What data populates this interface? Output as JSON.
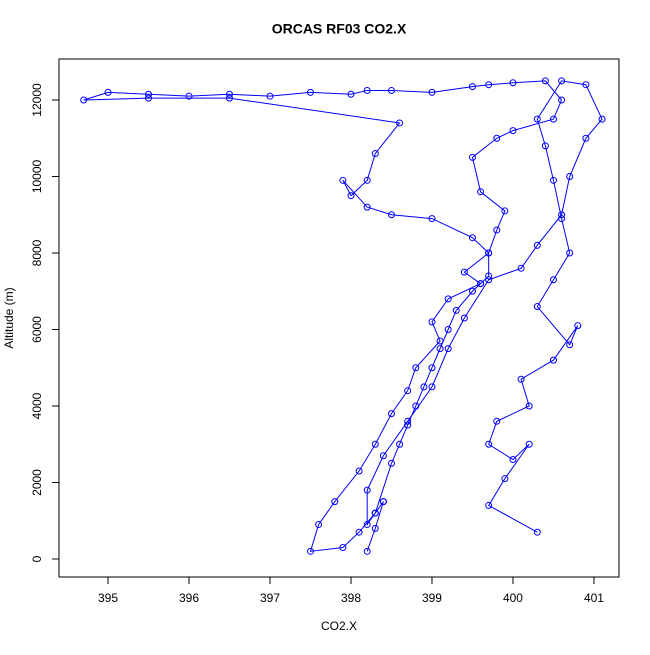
{
  "chart_data": {
    "type": "line",
    "title": "ORCAS RF03 CO2.X",
    "x_label": "CO2.X",
    "y_label": "Altitude (m)",
    "color": "#0000ff",
    "markers": true,
    "x": [
      398.2,
      398.3,
      398.4,
      398.3,
      398.5,
      398.6,
      398.7,
      398.8,
      398.9,
      399.0,
      399.1,
      399.2,
      399.3,
      399.5,
      399.6,
      399.7,
      399.7,
      399.8,
      399.9,
      399.6,
      399.5,
      399.8,
      400.0,
      400.5,
      400.6,
      400.4,
      400.0,
      399.7,
      399.5,
      399.0,
      398.5,
      398.2,
      398.0,
      397.5,
      397.0,
      396.5,
      396.0,
      395.5,
      395.0,
      394.7,
      395.5,
      396.5,
      398.6,
      398.3,
      398.2,
      398.0,
      397.9,
      398.2,
      398.5,
      399.0,
      399.5,
      399.7,
      399.4,
      399.6,
      399.2,
      399.0,
      399.1,
      398.8,
      398.7,
      398.5,
      398.3,
      398.1,
      397.8,
      397.6,
      397.5,
      397.9,
      398.1,
      398.3,
      398.4,
      398.2,
      398.2,
      398.4,
      398.7,
      399.0,
      399.2,
      399.4,
      399.7,
      400.1,
      400.3,
      400.6,
      400.7,
      400.9,
      401.1,
      400.9,
      400.6,
      400.3,
      400.4,
      400.5,
      400.6,
      400.7,
      400.5,
      400.3,
      400.7,
      400.8,
      400.5,
      400.1,
      400.2,
      399.8,
      399.7,
      400.0,
      400.2,
      399.9,
      399.7,
      400.3
    ],
    "values": [
      200,
      800,
      1500,
      1200,
      2500,
      3000,
      3500,
      4000,
      4500,
      5000,
      5500,
      6000,
      6500,
      7000,
      7200,
      7400,
      8000,
      8600,
      9100,
      9600,
      10500,
      11000,
      11200,
      11500,
      12000,
      12500,
      12450,
      12400,
      12350,
      12200,
      12250,
      12250,
      12150,
      12200,
      12100,
      12150,
      12100,
      12150,
      12200,
      12000,
      12050,
      12050,
      11400,
      10600,
      9900,
      9500,
      9900,
      9200,
      9000,
      8900,
      8400,
      8000,
      7500,
      7200,
      6800,
      6200,
      5700,
      5000,
      4400,
      3800,
      3000,
      2300,
      1500,
      900,
      200,
      300,
      700,
      1200,
      1500,
      900,
      1800,
      2700,
      3600,
      4500,
      5500,
      6300,
      7300,
      7600,
      8200,
      9000,
      10000,
      11000,
      11500,
      12400,
      12500,
      11500,
      10800,
      9900,
      8900,
      8000,
      7300,
      6600,
      5600,
      6100,
      5200,
      4700,
      4000,
      3600,
      3000,
      2600,
      3000,
      2100,
      1400,
      700
    ],
    "xlim": [
      394.395,
      401.309
    ],
    "ylim": [
      -471,
      13072
    ],
    "xticks": [
      395,
      396,
      397,
      398,
      399,
      400,
      401
    ],
    "yticks": [
      0,
      2000,
      4000,
      6000,
      8000,
      10000,
      12000
    ]
  }
}
